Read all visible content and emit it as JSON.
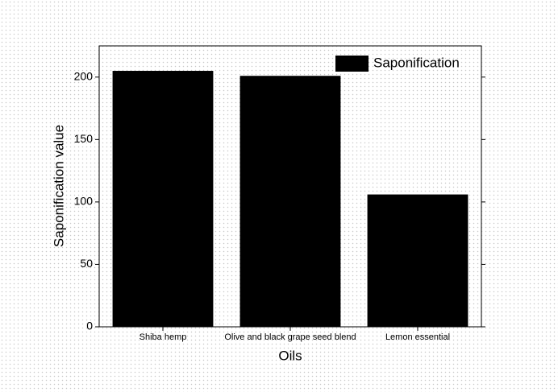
{
  "chart_data": {
    "type": "bar",
    "categories": [
      "Shiba hemp",
      "Olive and black grape seed blend",
      "Lemon essential"
    ],
    "series": [
      {
        "name": "Saponification",
        "color": "#000000",
        "values": [
          205,
          201,
          106
        ]
      }
    ],
    "x_label": "Oils",
    "y_label": "Saponification value",
    "ylim": [
      0,
      225
    ],
    "yticks": [
      0,
      50,
      100,
      150,
      200
    ],
    "legend": "upper right",
    "grid": false
  }
}
